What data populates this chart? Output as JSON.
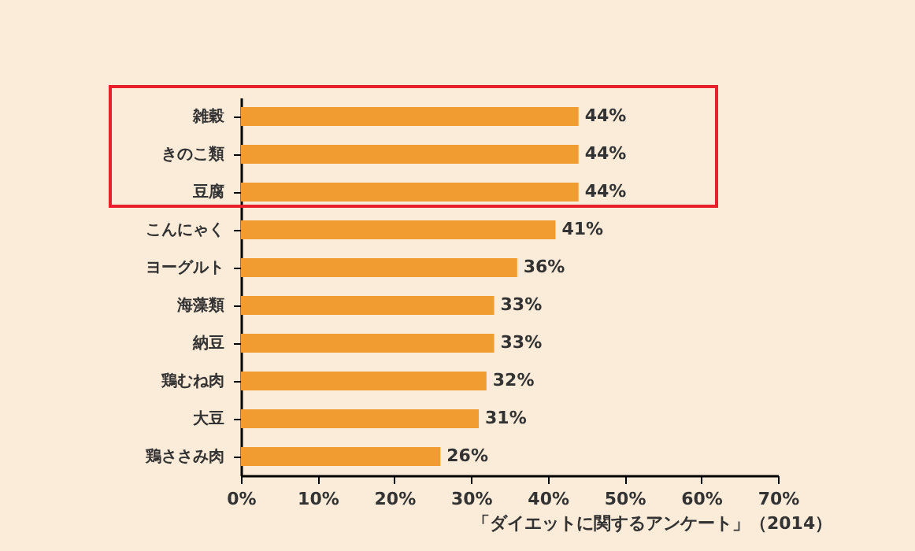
{
  "chart_data": {
    "type": "bar",
    "orientation": "horizontal",
    "categories": [
      "雑穀",
      "きのこ類",
      "豆腐",
      "こんにゃく",
      "ヨーグルト",
      "海藻類",
      "納豆",
      "鶏むね肉",
      "大豆",
      "鶏ささみ肉"
    ],
    "values": [
      44,
      44,
      44,
      41,
      36,
      33,
      33,
      32,
      31,
      26
    ],
    "value_labels": [
      "44%",
      "44%",
      "44%",
      "41%",
      "36%",
      "33%",
      "33%",
      "32%",
      "31%",
      "26%"
    ],
    "color": "#f09c30",
    "xlim": [
      0,
      70
    ],
    "xticks": [
      {
        "value": 0,
        "label": "0%"
      },
      {
        "value": 10,
        "label": "10%"
      },
      {
        "value": 20,
        "label": "20%"
      },
      {
        "value": 30,
        "label": "30%"
      },
      {
        "value": 40,
        "label": "40%"
      },
      {
        "value": 50,
        "label": "50%"
      },
      {
        "value": 60,
        "label": "60%"
      },
      {
        "value": 70,
        "label": "70%"
      }
    ],
    "grid": false,
    "annotations": [
      "「ダイエットに関するアンケート」（2014）"
    ]
  }
}
